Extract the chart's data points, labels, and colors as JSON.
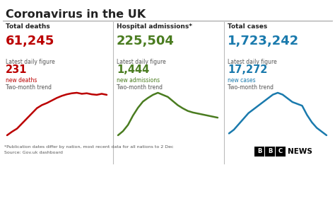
{
  "title": "Coronavirus in the UK",
  "background_color": "#ffffff",
  "columns": [
    {
      "header": "Total deaths",
      "big_number": "61,245",
      "big_number_color": "#bb0000",
      "label": "Latest daily figure",
      "small_number": "231",
      "small_number_color": "#bb0000",
      "sub_label": "new deaths",
      "sub_label_color": "#bb0000",
      "trend_label": "Two-month trend",
      "trend_x": [
        0,
        1,
        2,
        3,
        4,
        5,
        6,
        7,
        8,
        9,
        10,
        11,
        12,
        13,
        14,
        15,
        16,
        17,
        18,
        19,
        20
      ],
      "trend_y": [
        0.05,
        0.12,
        0.18,
        0.28,
        0.38,
        0.48,
        0.58,
        0.64,
        0.68,
        0.73,
        0.78,
        0.82,
        0.85,
        0.87,
        0.88,
        0.86,
        0.87,
        0.85,
        0.84,
        0.86,
        0.84
      ],
      "trend_color": "#bb0000"
    },
    {
      "header": "Hospital admissions*",
      "big_number": "225,504",
      "big_number_color": "#4a7c20",
      "label": "Latest daily figure",
      "small_number": "1,444",
      "small_number_color": "#4a7c20",
      "sub_label": "new admissions",
      "sub_label_color": "#4a7c20",
      "trend_label": "Two-month trend",
      "trend_x": [
        0,
        1,
        2,
        3,
        4,
        5,
        6,
        7,
        8,
        9,
        10,
        11,
        12,
        13,
        14,
        15,
        16,
        17,
        18,
        19,
        20
      ],
      "trend_y": [
        0.1,
        0.18,
        0.3,
        0.48,
        0.63,
        0.75,
        0.82,
        0.88,
        0.92,
        0.88,
        0.84,
        0.76,
        0.68,
        0.62,
        0.57,
        0.54,
        0.52,
        0.5,
        0.48,
        0.46,
        0.44
      ],
      "trend_color": "#4a7c20"
    },
    {
      "header": "Total cases",
      "big_number": "1,723,242",
      "big_number_color": "#1a7aad",
      "label": "Latest daily figure",
      "small_number": "17,272",
      "small_number_color": "#1a7aad",
      "sub_label": "new cases",
      "sub_label_color": "#1a7aad",
      "trend_label": "Two-month trend",
      "trend_x": [
        0,
        1,
        2,
        3,
        4,
        5,
        6,
        7,
        8,
        9,
        10,
        11,
        12,
        13,
        14,
        15,
        16,
        17,
        18,
        19,
        20
      ],
      "trend_y": [
        0.38,
        0.42,
        0.48,
        0.54,
        0.6,
        0.64,
        0.68,
        0.72,
        0.76,
        0.8,
        0.82,
        0.8,
        0.76,
        0.72,
        0.7,
        0.68,
        0.58,
        0.5,
        0.44,
        0.4,
        0.36
      ],
      "trend_color": "#1a7aad"
    }
  ],
  "footnote_line1": "*Publication dates differ by nation, most recent data for all nations to 2 Dec",
  "footnote_line2": "Source: Gov.uk dashboard",
  "divider_color": "#bbbbbb",
  "text_color": "#222222",
  "label_color": "#555555"
}
